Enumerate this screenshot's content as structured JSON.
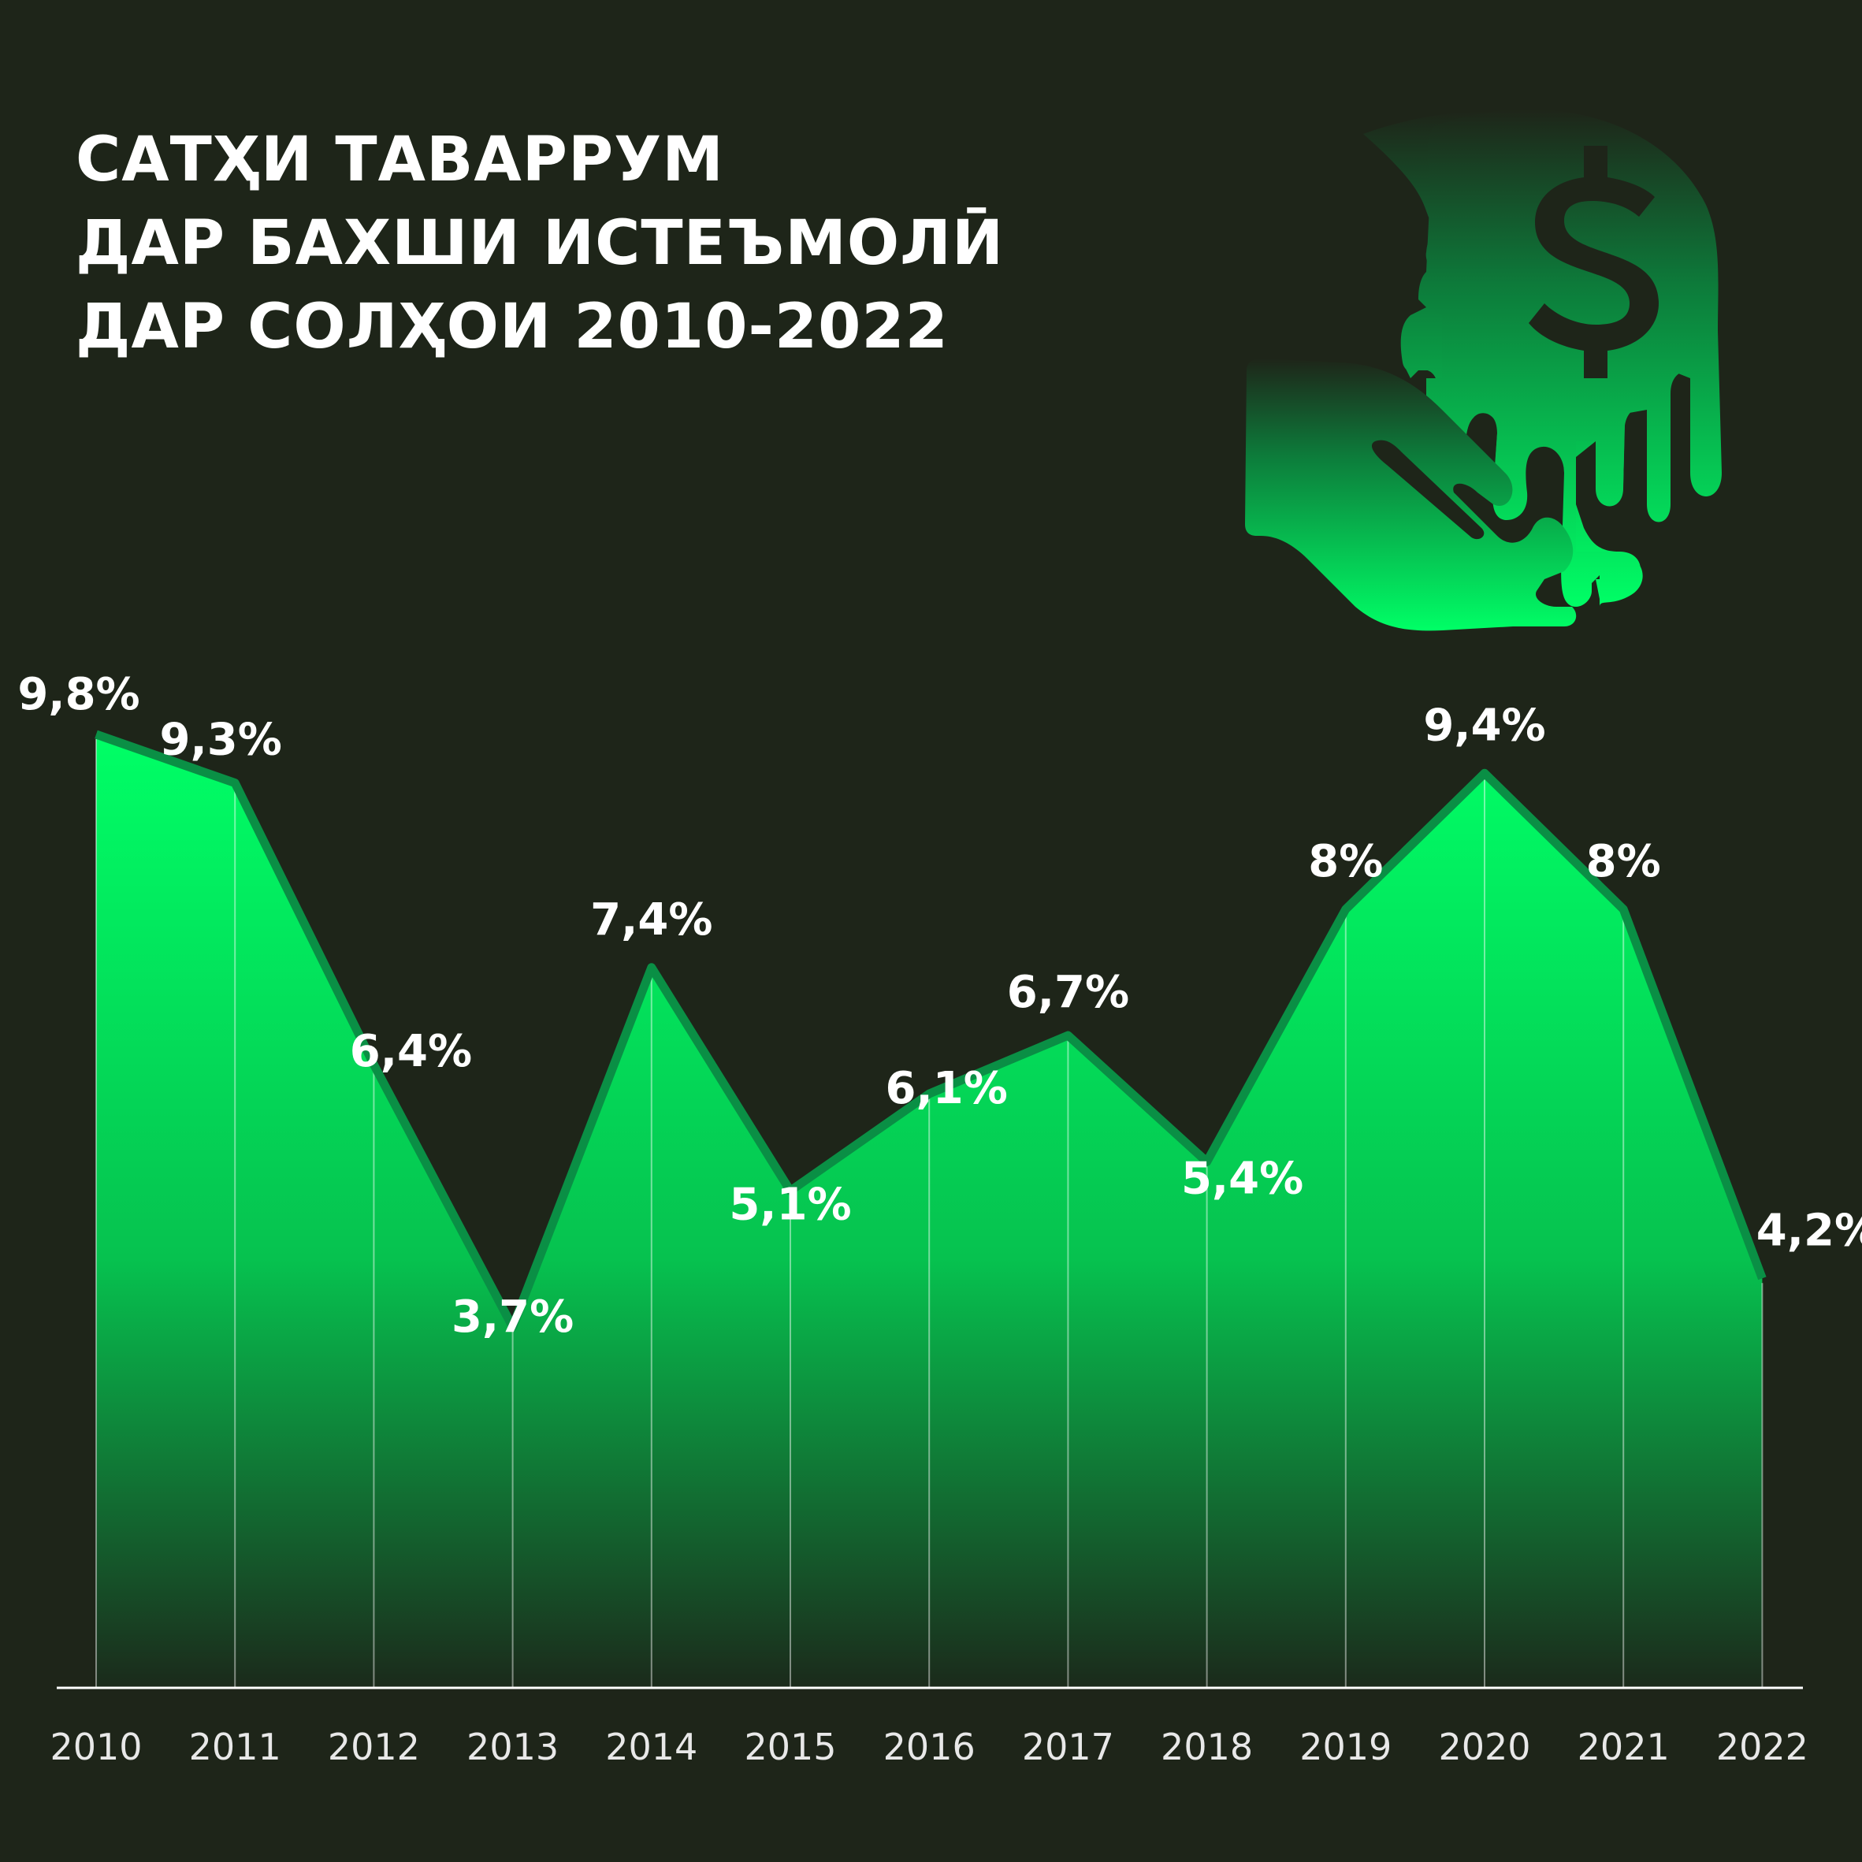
{
  "title_lines": [
    "САТҲИ ТАВАРРУМ",
    "ДАР БАХШИ ИСТЕЪМОЛӢ",
    "ДАР СОЛҲОИ 2010-2022"
  ],
  "icon": "hand-with-melting-dollar-coin-icon",
  "colors": {
    "background": "#1e2519",
    "area_top": "#00ff66",
    "area_bottom": "#1a2a1a",
    "line": "#0a8f45",
    "text": "#ffffff"
  },
  "chart_data": {
    "type": "area",
    "title": "САТҲИ ТАВАРРУМ ДАР БАХШИ ИСТЕЪМОЛӢ ДАР СОЛҲОИ 2010-2022",
    "categories": [
      "2010",
      "2011",
      "2012",
      "2013",
      "2014",
      "2015",
      "2016",
      "2017",
      "2018",
      "2019",
      "2020",
      "2021",
      "2022"
    ],
    "values": [
      9.8,
      9.3,
      6.4,
      3.7,
      7.4,
      5.1,
      6.1,
      6.7,
      5.4,
      8,
      9.4,
      8,
      4.2
    ],
    "labels": [
      "9,8%",
      "9,3%",
      "6,4%",
      "3,7%",
      "7,4%",
      "5,1%",
      "6,1%",
      "6,7%",
      "5,4%",
      "8%",
      "9,4%",
      "8%",
      "4,2%"
    ],
    "xlabel": "",
    "ylabel": "",
    "grid": "vertical",
    "legend": "none"
  }
}
